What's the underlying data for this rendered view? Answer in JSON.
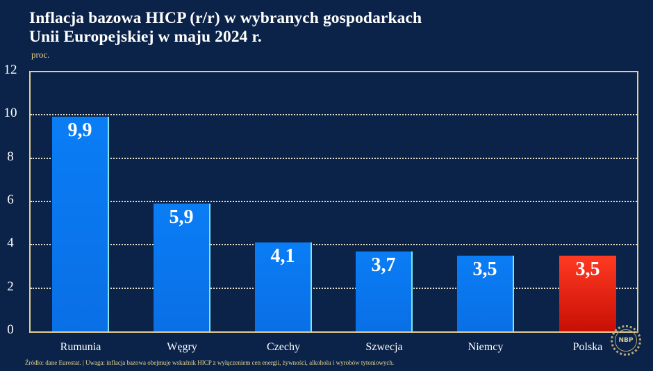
{
  "header": {
    "title_line1": "Inflacja bazowa HICP (r/r) w wybranych gospodarkach",
    "title_line2": "Unii Europejskiej w maju 2024 r.",
    "unit": "proc."
  },
  "footer": {
    "note": "Źródło: dane Eurostat.  |  Uwaga: inflacja bazowa obejmuje wskaźnik HICP z wyłączeniem cen energii, żywności, alkoholu i wyrobów tytoniowych."
  },
  "logo": {
    "text": "NBP",
    "icon": "nbp-logo-icon"
  },
  "colors": {
    "background": "#0b2349",
    "bar": "#0a7df5",
    "highlight_bar": "#e8200f",
    "frame": "#e3cf94",
    "unit_text": "#e8d48a"
  },
  "chart_data": {
    "type": "bar",
    "title": "Inflacja bazowa HICP (r/r) w wybranych gospodarkach Unii Europejskiej w maju 2024 r.",
    "xlabel": "",
    "ylabel": "proc.",
    "ylim": [
      0,
      12
    ],
    "yticks": [
      "0",
      "2",
      "4",
      "6",
      "8",
      "10",
      "12"
    ],
    "grid": true,
    "categories": [
      "Rumunia",
      "Węgry",
      "Czechy",
      "Szwecja",
      "Niemcy",
      "Polska"
    ],
    "values": [
      9.9,
      5.9,
      4.1,
      3.7,
      3.5,
      3.5
    ],
    "labels": [
      "9,9",
      "5,9",
      "4,1",
      "3,7",
      "3,5",
      "3,5"
    ],
    "highlight": "Polska",
    "legend": null
  }
}
